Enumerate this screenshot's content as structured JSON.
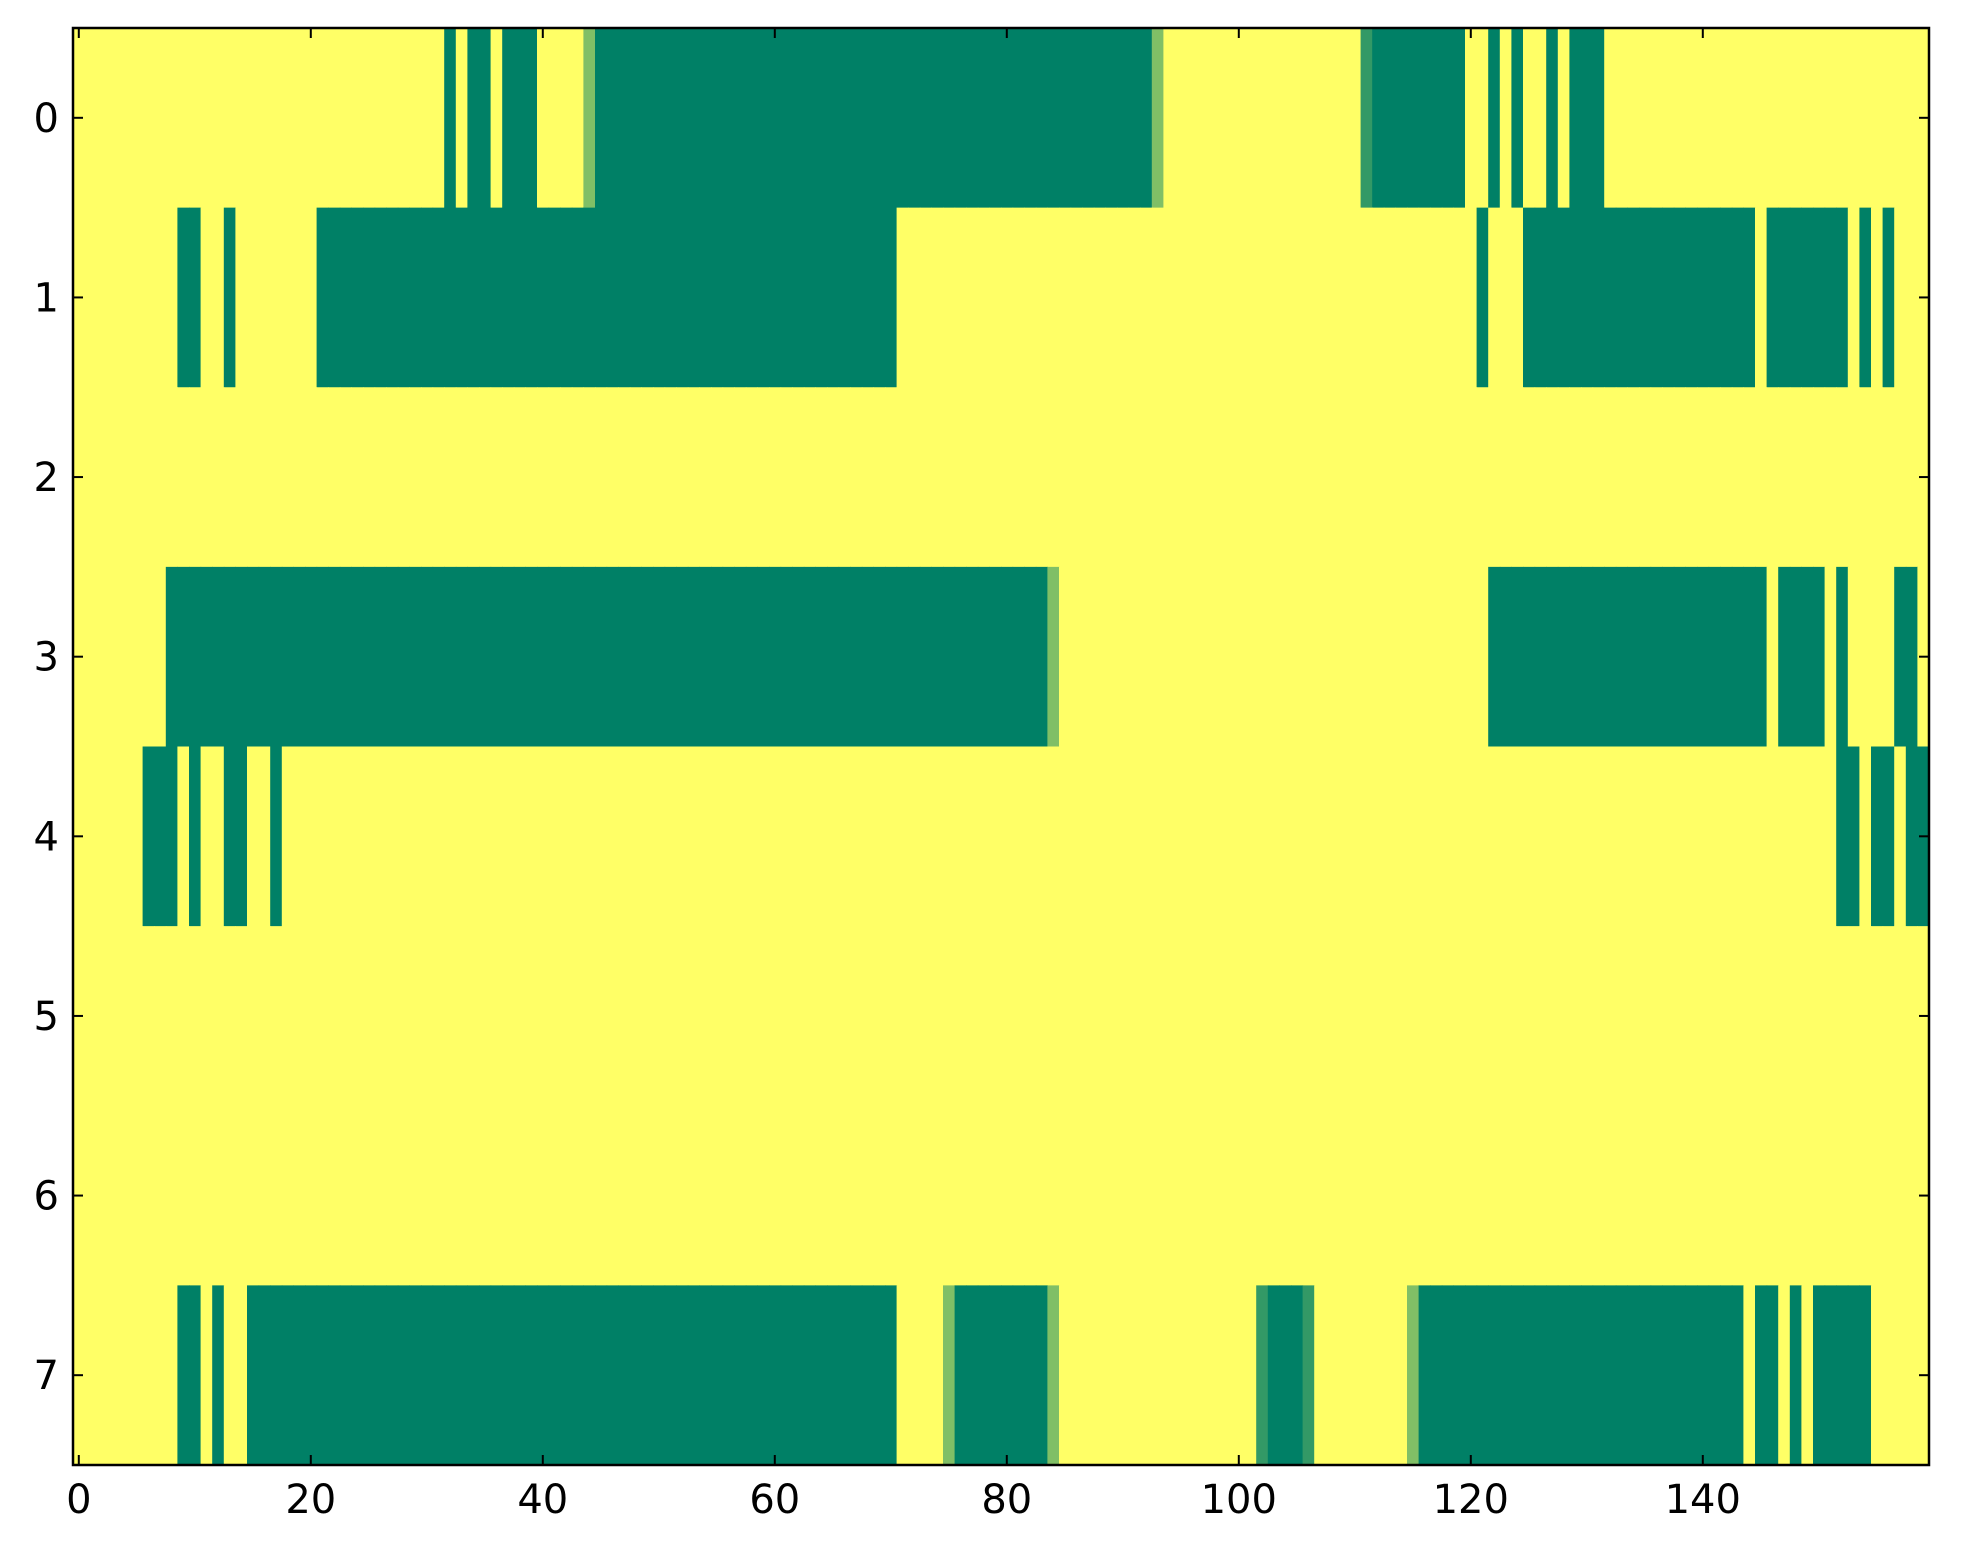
{
  "chart_data": {
    "type": "heatmap",
    "colormap": "summer",
    "z": [
      [
        1,
        1,
        1,
        1,
        1,
        1,
        1,
        1,
        1,
        1,
        1,
        1,
        1,
        1,
        1,
        1,
        1,
        1,
        1,
        1,
        1,
        1,
        1,
        1,
        1,
        1,
        1,
        1,
        1,
        1,
        1,
        1,
        0,
        1,
        0,
        0,
        1,
        0,
        0,
        0,
        1,
        1,
        1,
        1,
        0.5,
        0,
        0,
        0,
        0,
        0,
        0,
        0,
        0,
        0,
        0,
        0,
        0,
        0,
        0,
        0,
        0,
        0,
        0,
        0,
        0,
        0,
        0,
        0,
        0,
        0,
        0,
        0,
        0,
        0,
        0,
        0,
        0,
        0,
        0,
        0,
        0,
        0,
        0,
        0,
        0,
        0,
        0,
        0,
        0,
        0,
        0,
        0,
        0,
        0.5,
        1,
        1,
        1,
        1,
        1,
        1,
        1,
        1,
        1,
        1,
        1,
        1,
        1,
        1,
        1,
        1,
        1,
        0.2,
        0,
        0,
        0,
        0,
        0,
        0,
        0,
        0,
        1,
        1,
        0,
        1,
        0,
        1,
        1,
        0,
        1,
        0,
        0,
        0,
        1,
        1,
        1,
        1,
        1,
        1,
        1,
        1,
        1,
        1,
        1,
        1,
        1,
        1,
        1,
        1,
        1,
        1,
        1,
        1,
        1,
        1,
        1,
        1,
        1,
        1,
        1,
        1
      ],
      [
        1,
        1,
        1,
        1,
        1,
        1,
        1,
        1,
        1,
        0,
        0,
        1,
        1,
        0,
        1,
        1,
        1,
        1,
        1,
        1,
        1,
        0,
        0,
        0,
        0,
        0,
        0,
        0,
        0,
        0,
        0,
        0,
        0,
        0,
        0,
        0,
        0,
        0,
        0,
        0,
        0,
        0,
        0,
        0,
        0,
        0,
        0,
        0,
        0,
        0,
        0,
        0,
        0,
        0,
        0,
        0,
        0,
        0,
        0,
        0,
        0,
        0,
        0,
        0,
        0,
        0,
        0,
        0,
        0,
        0,
        0,
        1,
        1,
        1,
        1,
        1,
        1,
        1,
        1,
        1,
        1,
        1,
        1,
        1,
        1,
        1,
        1,
        1,
        1,
        1,
        1,
        1,
        1,
        1,
        1,
        1,
        1,
        1,
        1,
        1,
        1,
        1,
        1,
        1,
        1,
        1,
        1,
        1,
        1,
        1,
        1,
        1,
        1,
        1,
        1,
        1,
        1,
        1,
        1,
        1,
        1,
        0,
        1,
        1,
        1,
        0,
        0,
        0,
        0,
        0,
        0,
        0,
        0,
        0,
        0,
        0,
        0,
        0,
        0,
        0,
        0,
        0,
        0,
        0,
        0,
        1,
        0,
        0,
        0,
        0,
        0,
        0,
        0,
        1,
        0,
        1,
        0,
        1,
        1,
        1
      ],
      [
        1,
        1,
        1,
        1,
        1,
        1,
        1,
        1,
        1,
        1,
        1,
        1,
        1,
        1,
        1,
        1,
        1,
        1,
        1,
        1,
        1,
        1,
        1,
        1,
        1,
        1,
        1,
        1,
        1,
        1,
        1,
        1,
        1,
        1,
        1,
        1,
        1,
        1,
        1,
        1,
        1,
        1,
        1,
        1,
        1,
        1,
        1,
        1,
        1,
        1,
        1,
        1,
        1,
        1,
        1,
        1,
        1,
        1,
        1,
        1,
        1,
        1,
        1,
        1,
        1,
        1,
        1,
        1,
        1,
        1,
        1,
        1,
        1,
        1,
        1,
        1,
        1,
        1,
        1,
        1,
        1,
        1,
        1,
        1,
        1,
        1,
        1,
        1,
        1,
        1,
        1,
        1,
        1,
        1,
        1,
        1,
        1,
        1,
        1,
        1,
        1,
        1,
        1,
        1,
        1,
        1,
        1,
        1,
        1,
        1,
        1,
        1,
        1,
        1,
        1,
        1,
        1,
        1,
        1,
        1,
        1,
        1,
        1,
        1,
        1,
        1,
        1,
        1,
        1,
        1,
        1,
        1,
        1,
        1,
        1,
        1,
        1,
        1,
        1,
        1,
        1,
        1,
        1,
        1,
        1,
        1,
        1,
        1,
        1,
        1,
        1,
        1,
        1,
        1,
        1,
        1,
        1,
        1,
        1,
        1
      ],
      [
        1,
        1,
        1,
        1,
        1,
        1,
        1,
        1,
        0,
        0,
        0,
        0,
        0,
        0,
        0,
        0,
        0,
        0,
        0,
        0,
        0,
        0,
        0,
        0,
        0,
        0,
        0,
        0,
        0,
        0,
        0,
        0,
        0,
        0,
        0,
        0,
        0,
        0,
        0,
        0,
        0,
        0,
        0,
        0,
        0,
        0,
        0,
        0,
        0,
        0,
        0,
        0,
        0,
        0,
        0,
        0,
        0,
        0,
        0,
        0,
        0,
        0,
        0,
        0,
        0,
        0,
        0,
        0,
        0,
        0,
        0,
        0,
        0,
        0,
        0,
        0,
        0,
        0,
        0,
        0,
        0,
        0,
        0,
        0,
        0.5,
        1,
        1,
        1,
        1,
        1,
        1,
        1,
        1,
        1,
        1,
        1,
        1,
        1,
        1,
        1,
        1,
        1,
        1,
        1,
        1,
        1,
        1,
        1,
        1,
        1,
        1,
        1,
        1,
        1,
        1,
        1,
        1,
        1,
        1,
        1,
        1,
        1,
        0,
        0,
        0,
        0,
        0,
        0,
        0,
        0,
        0,
        0,
        0,
        0,
        0,
        0,
        0,
        0,
        0,
        0,
        0,
        0,
        0,
        0,
        0,
        0,
        1,
        0,
        0,
        0,
        0,
        1,
        0,
        1,
        1,
        1,
        1,
        0,
        0,
        1
      ],
      [
        1,
        1,
        1,
        1,
        1,
        1,
        0,
        0,
        0,
        1,
        0,
        1,
        1,
        0,
        0,
        1,
        1,
        0,
        1,
        1,
        1,
        1,
        1,
        1,
        1,
        1,
        1,
        1,
        1,
        1,
        1,
        1,
        1,
        1,
        1,
        1,
        1,
        1,
        1,
        1,
        1,
        1,
        1,
        1,
        1,
        1,
        1,
        1,
        1,
        1,
        1,
        1,
        1,
        1,
        1,
        1,
        1,
        1,
        1,
        1,
        1,
        1,
        1,
        1,
        1,
        1,
        1,
        1,
        1,
        1,
        1,
        1,
        1,
        1,
        1,
        1,
        1,
        1,
        1,
        1,
        1,
        1,
        1,
        1,
        1,
        1,
        1,
        1,
        1,
        1,
        1,
        1,
        1,
        1,
        1,
        1,
        1,
        1,
        1,
        1,
        1,
        1,
        1,
        1,
        1,
        1,
        1,
        1,
        1,
        1,
        1,
        1,
        1,
        1,
        1,
        1,
        1,
        1,
        1,
        1,
        1,
        1,
        1,
        1,
        1,
        1,
        1,
        1,
        1,
        1,
        1,
        1,
        1,
        1,
        1,
        1,
        1,
        1,
        1,
        1,
        1,
        1,
        1,
        1,
        1,
        1,
        1,
        1,
        1,
        1,
        1,
        1,
        0,
        0,
        1,
        0,
        0,
        1,
        0,
        0
      ],
      [
        1,
        1,
        1,
        1,
        1,
        1,
        1,
        1,
        1,
        1,
        1,
        1,
        1,
        1,
        1,
        1,
        1,
        1,
        1,
        1,
        1,
        1,
        1,
        1,
        1,
        1,
        1,
        1,
        1,
        1,
        1,
        1,
        1,
        1,
        1,
        1,
        1,
        1,
        1,
        1,
        1,
        1,
        1,
        1,
        1,
        1,
        1,
        1,
        1,
        1,
        1,
        1,
        1,
        1,
        1,
        1,
        1,
        1,
        1,
        1,
        1,
        1,
        1,
        1,
        1,
        1,
        1,
        1,
        1,
        1,
        1,
        1,
        1,
        1,
        1,
        1,
        1,
        1,
        1,
        1,
        1,
        1,
        1,
        1,
        1,
        1,
        1,
        1,
        1,
        1,
        1,
        1,
        1,
        1,
        1,
        1,
        1,
        1,
        1,
        1,
        1,
        1,
        1,
        1,
        1,
        1,
        1,
        1,
        1,
        1,
        1,
        1,
        1,
        1,
        1,
        1,
        1,
        1,
        1,
        1,
        1,
        1,
        1,
        1,
        1,
        1,
        1,
        1,
        1,
        1,
        1,
        1,
        1,
        1,
        1,
        1,
        1,
        1,
        1,
        1,
        1,
        1,
        1,
        1,
        1,
        1,
        1,
        1,
        1,
        1,
        1,
        1,
        1,
        1,
        1,
        1,
        1,
        1,
        1,
        1
      ],
      [
        1,
        1,
        1,
        1,
        1,
        1,
        1,
        1,
        1,
        1,
        1,
        1,
        1,
        1,
        1,
        1,
        1,
        1,
        1,
        1,
        1,
        1,
        1,
        1,
        1,
        1,
        1,
        1,
        1,
        1,
        1,
        1,
        1,
        1,
        1,
        1,
        1,
        1,
        1,
        1,
        1,
        1,
        1,
        1,
        1,
        1,
        1,
        1,
        1,
        1,
        1,
        1,
        1,
        1,
        1,
        1,
        1,
        1,
        1,
        1,
        1,
        1,
        1,
        1,
        1,
        1,
        1,
        1,
        1,
        1,
        1,
        1,
        1,
        1,
        1,
        1,
        1,
        1,
        1,
        1,
        1,
        1,
        1,
        1,
        1,
        1,
        1,
        1,
        1,
        1,
        1,
        1,
        1,
        1,
        1,
        1,
        1,
        1,
        1,
        1,
        1,
        1,
        1,
        1,
        1,
        1,
        1,
        1,
        1,
        1,
        1,
        1,
        1,
        1,
        1,
        1,
        1,
        1,
        1,
        1,
        1,
        1,
        1,
        1,
        1,
        1,
        1,
        1,
        1,
        1,
        1,
        1,
        1,
        1,
        1,
        1,
        1,
        1,
        1,
        1,
        1,
        1,
        1,
        1,
        1,
        1,
        1,
        1,
        1,
        1,
        1,
        1,
        1,
        1,
        1,
        1,
        1,
        1,
        1,
        1
      ],
      [
        1,
        1,
        1,
        1,
        1,
        1,
        1,
        1,
        1,
        0,
        0,
        1,
        0,
        1,
        1,
        0,
        0,
        0,
        0,
        0,
        0,
        0,
        0,
        0,
        0,
        0,
        0,
        0,
        0,
        0,
        0,
        0,
        0,
        0,
        0,
        0,
        0,
        0,
        0,
        0,
        0,
        0,
        0,
        0,
        0,
        0,
        0,
        0,
        0,
        0,
        0,
        0,
        0,
        0,
        0,
        0,
        0,
        0,
        0,
        0,
        0,
        0,
        0,
        0,
        0,
        0,
        0,
        0,
        0,
        0,
        0,
        1,
        1,
        1,
        1,
        0.5,
        0,
        0,
        0,
        0,
        0,
        0,
        0,
        0,
        0.5,
        1,
        1,
        1,
        1,
        1,
        1,
        1,
        1,
        1,
        1,
        1,
        1,
        1,
        1,
        1,
        1,
        1,
        0.2,
        0,
        0,
        0,
        0.2,
        1,
        1,
        1,
        1,
        1,
        1,
        1,
        1,
        0.5,
        0,
        0,
        0,
        0,
        0,
        0,
        0,
        0,
        0,
        0,
        0,
        0,
        0,
        0,
        0,
        0,
        0,
        0,
        0,
        0,
        0,
        0,
        0,
        0,
        0,
        0,
        0,
        0,
        1,
        0,
        0,
        1,
        0,
        1,
        0,
        0,
        0,
        0,
        0,
        1,
        1,
        1,
        1,
        1
      ]
    ],
    "xlim": [
      -0.5,
      159.5
    ],
    "ylim": [
      7.5,
      -0.5
    ],
    "xticks": [
      0,
      20,
      40,
      60,
      80,
      100,
      120,
      140
    ],
    "yticks": [
      0,
      1,
      2,
      3,
      4,
      5,
      6,
      7
    ]
  }
}
